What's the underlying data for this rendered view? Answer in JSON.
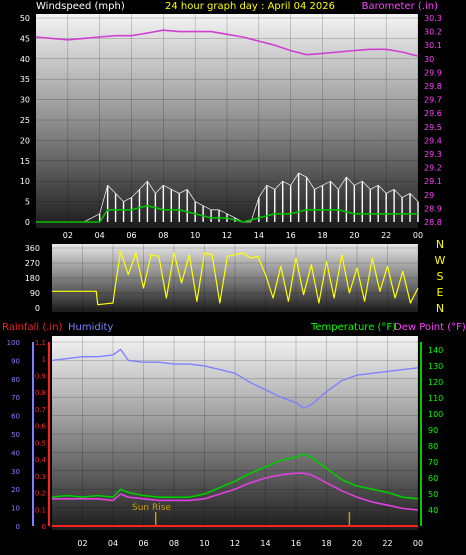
{
  "header": {
    "left_label": "Windspeed (mph)",
    "title": "24 hour graph day : April 04 2026",
    "right_label": "Barometer (.in)"
  },
  "compass": [
    "N",
    "W",
    "S",
    "E",
    "N"
  ],
  "bottom_header": {
    "rain_label": "Rainfall (.in)",
    "humidity_label": "Humidity",
    "temp_label": "Temperature (°F)",
    "dewpoint_label": "Dew Point (°F)"
  },
  "annotations": {
    "sunrise": "Sun Rise"
  },
  "colors": {
    "windspeed": "#ffffff",
    "gust": "#e8e8e8",
    "avg_wind": "#00c000",
    "barometer": "#d040d0",
    "direction": "#ffff00",
    "rain": "#ff2020",
    "humidity": "#8080ff",
    "temperature": "#00cc00",
    "dewpoint": "#e040e0",
    "sunrise": "#c8a000"
  },
  "chart_data": [
    {
      "type": "line",
      "name": "wind-barometer",
      "x_ticks": [
        "02",
        "04",
        "06",
        "08",
        "10",
        "12",
        "14",
        "16",
        "18",
        "20",
        "22",
        "00"
      ],
      "xlim": [
        0,
        24
      ],
      "y_left_ticks": [
        0,
        5,
        10,
        15,
        20,
        25,
        30,
        35,
        40,
        45,
        50
      ],
      "ylim_left": [
        0,
        50
      ],
      "y_right_ticks": [
        "28.8",
        "28.9",
        "29",
        "29.1",
        "29.2",
        "29.3",
        "29.4",
        "29.5",
        "29.6",
        "29.7",
        "29.8",
        "29.9",
        "30",
        "30.1",
        "30.2",
        "30.3"
      ],
      "ylim_right": [
        28.8,
        30.3
      ],
      "series": [
        {
          "name": "Barometer",
          "axis": "right",
          "x": [
            0,
            1,
            2,
            3,
            4,
            5,
            6,
            7,
            8,
            9,
            10,
            11,
            12,
            13,
            14,
            15,
            16,
            17,
            18,
            19,
            20,
            21,
            22,
            23,
            24
          ],
          "values": [
            30.16,
            30.15,
            30.14,
            30.15,
            30.16,
            30.17,
            30.17,
            30.19,
            30.21,
            30.2,
            30.2,
            30.2,
            30.18,
            30.16,
            30.13,
            30.1,
            30.06,
            30.03,
            30.04,
            30.05,
            30.06,
            30.07,
            30.07,
            30.05,
            30.02
          ]
        },
        {
          "name": "Windspeed",
          "axis": "left",
          "x": [
            0,
            1,
            2,
            3,
            4,
            4.5,
            5,
            5.5,
            6,
            6.5,
            7,
            7.5,
            8,
            8.5,
            9,
            9.5,
            10,
            10.5,
            11,
            11.5,
            12,
            12.5,
            13,
            13.5,
            14,
            14.5,
            15,
            15.5,
            16,
            16.5,
            17,
            17.5,
            18,
            18.5,
            19,
            19.5,
            20,
            20.5,
            21,
            21.5,
            22,
            22.5,
            23,
            23.5,
            24
          ],
          "values": [
            0,
            0,
            0,
            0,
            2,
            9,
            7,
            5,
            6,
            8,
            10,
            7,
            9,
            8,
            7,
            8,
            5,
            4,
            3,
            3,
            2,
            1,
            0,
            0,
            6,
            9,
            8,
            10,
            9,
            12,
            11,
            8,
            9,
            10,
            8,
            11,
            9,
            10,
            8,
            9,
            7,
            8,
            6,
            7,
            5
          ]
        },
        {
          "name": "Avg Wind",
          "axis": "left",
          "x": [
            0,
            2,
            4,
            4.5,
            5,
            6,
            7,
            8,
            9,
            10,
            11,
            12,
            13,
            14,
            15,
            16,
            17,
            18,
            19,
            20,
            21,
            22,
            23,
            24
          ],
          "values": [
            0,
            0,
            0,
            3,
            3,
            3,
            4,
            3,
            3,
            2,
            1,
            1,
            0,
            1,
            2,
            2,
            3,
            3,
            3,
            2,
            2,
            2,
            2,
            2
          ]
        }
      ]
    },
    {
      "type": "line",
      "name": "wind-direction",
      "x_ticks": [
        "02",
        "04",
        "06",
        "08",
        "10",
        "12",
        "14",
        "16",
        "18",
        "20",
        "22",
        "00"
      ],
      "xlim": [
        0,
        24
      ],
      "y_ticks": [
        0,
        90,
        180,
        270,
        360
      ],
      "ylim": [
        0,
        360
      ],
      "series": [
        {
          "name": "Wind Direction",
          "x": [
            0,
            1,
            2,
            2.9,
            3,
            3.5,
            4,
            4.1,
            4.5,
            5,
            5.5,
            6,
            6.5,
            7,
            7.5,
            8,
            8.5,
            9,
            9.5,
            10,
            10.5,
            11,
            11.5,
            12,
            12.5,
            13,
            13.5,
            14,
            14.5,
            15,
            15.5,
            16,
            16.5,
            17,
            17.5,
            18,
            18.5,
            19,
            19.5,
            20,
            20.5,
            21,
            21.5,
            22,
            22.5,
            23,
            23.5,
            24
          ],
          "values": [
            100,
            100,
            100,
            100,
            20,
            25,
            30,
            100,
            340,
            200,
            330,
            120,
            320,
            310,
            60,
            330,
            150,
            320,
            40,
            330,
            320,
            30,
            310,
            320,
            330,
            300,
            310,
            200,
            60,
            250,
            40,
            300,
            80,
            260,
            30,
            280,
            60,
            320,
            90,
            240,
            40,
            300,
            100,
            250,
            60,
            220,
            30,
            120
          ]
        }
      ]
    },
    {
      "type": "line",
      "name": "temp-humidity-rain",
      "x_ticks": [
        "02",
        "04",
        "06",
        "08",
        "10",
        "12",
        "14",
        "16",
        "18",
        "20",
        "22",
        "00"
      ],
      "xlim": [
        0,
        24
      ],
      "y_rain_ticks": [
        "0",
        "0.1",
        "0.2",
        "0.3",
        "0.4",
        "0.5",
        "0.6",
        "0.7",
        "0.8",
        "0.9",
        "1",
        "1.1"
      ],
      "ylim_rain": [
        0,
        1.1
      ],
      "y_humidity_ticks": [
        0,
        10,
        20,
        30,
        40,
        50,
        60,
        70,
        80,
        90,
        100
      ],
      "ylim_humidity": [
        0,
        100
      ],
      "y_temp_ticks": [
        40,
        50,
        60,
        70,
        80,
        90,
        100,
        110,
        120,
        130,
        140
      ],
      "ylim_temp": [
        30,
        145
      ],
      "series": [
        {
          "name": "Rainfall",
          "axis": "rain",
          "x": [
            0,
            24
          ],
          "values": [
            0,
            0
          ]
        },
        {
          "name": "Humidity",
          "axis": "humidity",
          "x": [
            0,
            1,
            2,
            3,
            4,
            4.5,
            5,
            6,
            7,
            8,
            9,
            10,
            11,
            12,
            13,
            14,
            15,
            16,
            16.5,
            17,
            18,
            19,
            20,
            21,
            22,
            23,
            24
          ],
          "values": [
            90,
            91,
            92,
            92,
            93,
            96,
            90,
            89,
            89,
            88,
            88,
            87,
            85,
            83,
            78,
            74,
            70,
            67,
            64,
            66,
            73,
            79,
            82,
            83,
            84,
            85,
            86
          ]
        },
        {
          "name": "Temperature",
          "axis": "temp",
          "x": [
            0,
            1,
            2,
            3,
            4,
            4.5,
            5,
            6,
            7,
            8,
            9,
            10,
            11,
            12,
            13,
            14,
            15,
            16,
            16.5,
            17,
            18,
            19,
            20,
            21,
            22,
            23,
            24
          ],
          "values": [
            48,
            49,
            48,
            49,
            48,
            53,
            51,
            49,
            48,
            48,
            48,
            50,
            54,
            58,
            63,
            67,
            71,
            73,
            75,
            73,
            66,
            59,
            55,
            53,
            51,
            48,
            47
          ]
        },
        {
          "name": "Dew Point",
          "axis": "temp",
          "x": [
            0,
            1,
            2,
            3,
            4,
            4.5,
            5,
            6,
            7,
            8,
            9,
            10,
            11,
            12,
            13,
            14,
            15,
            16,
            16.5,
            17,
            18,
            19,
            20,
            21,
            22,
            23,
            24
          ],
          "values": [
            47,
            47,
            47,
            47,
            46,
            50,
            48,
            47,
            46,
            46,
            46,
            47,
            50,
            53,
            57,
            60,
            62,
            63,
            63,
            62,
            57,
            52,
            48,
            45,
            43,
            41,
            40
          ]
        }
      ],
      "markers": [
        {
          "name": "Sun Rise",
          "x": 6.8
        },
        {
          "name": "Sunset",
          "x": 19.5
        }
      ]
    }
  ]
}
